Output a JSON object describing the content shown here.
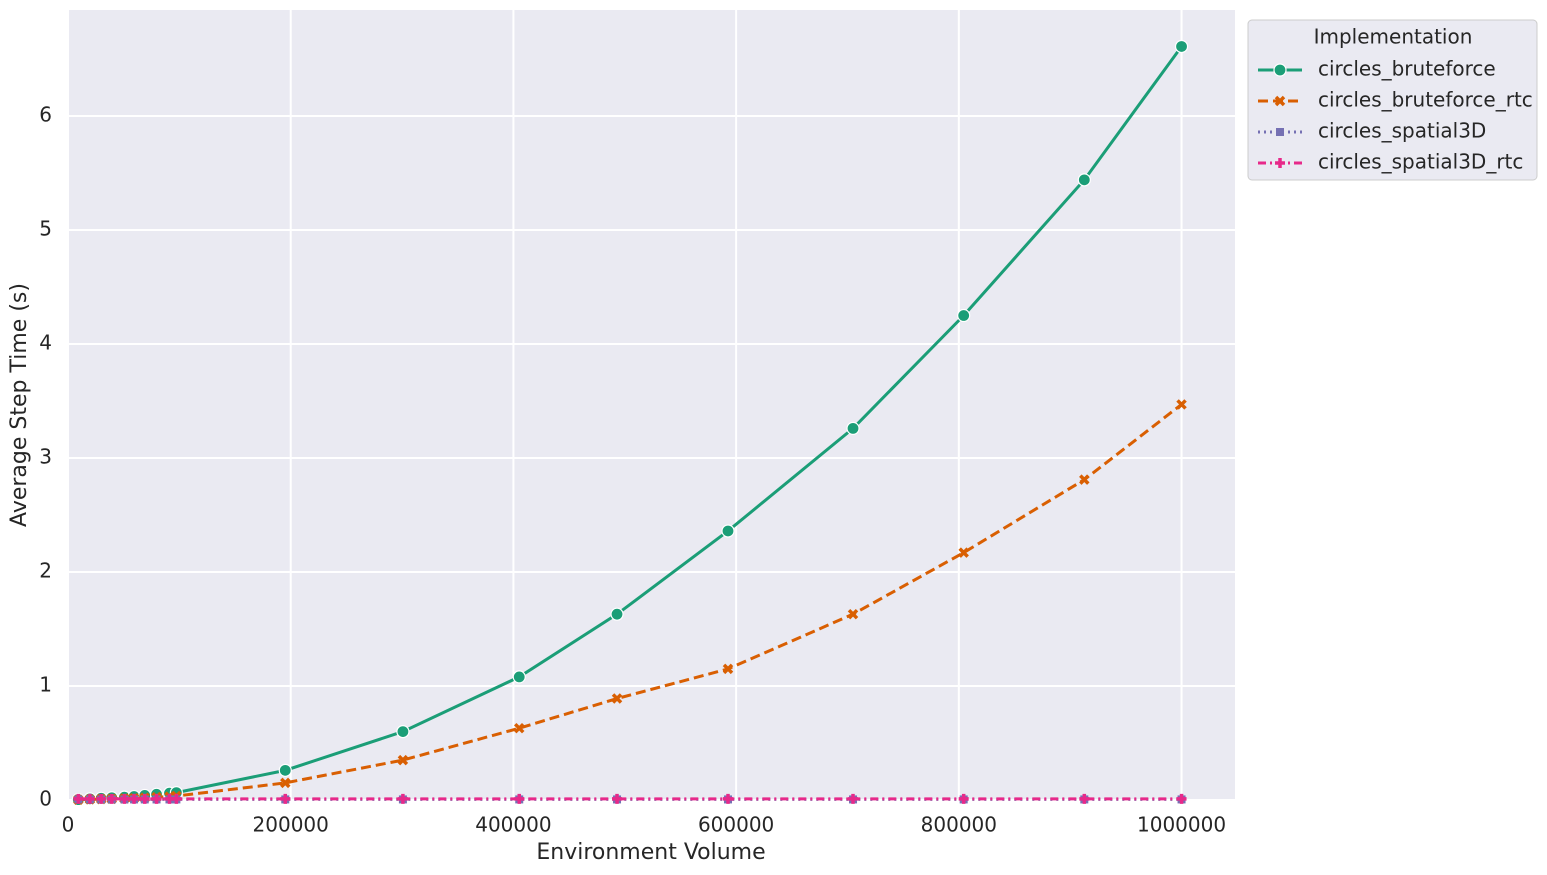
{
  "chart_data": {
    "type": "line",
    "xlabel": "Environment Volume",
    "ylabel": "Average Step Time (s)",
    "legend_title": "Implementation",
    "legend": "upper right outside",
    "grid": true,
    "x": [
      9261,
      19683,
      29791,
      39304,
      50653,
      59319,
      68921,
      79507,
      91125,
      97336,
      195112,
      300763,
      405224,
      493039,
      592704,
      704969,
      804357,
      912673,
      1000000
    ],
    "xlim": [
      0,
      1048000
    ],
    "xticks": [
      0,
      200000,
      400000,
      600000,
      800000,
      1000000
    ],
    "ylim": [
      0,
      6.93
    ],
    "yticks": [
      0,
      1,
      2,
      3,
      4,
      5,
      6
    ],
    "series": [
      {
        "name": "circles_bruteforce",
        "color": "#1b9e77",
        "linestyle": "solid",
        "marker": "circle",
        "values": [
          0.003,
          0.01,
          0.015,
          0.02,
          0.025,
          0.03,
          0.04,
          0.05,
          0.06,
          0.065,
          0.26,
          0.6,
          1.08,
          1.63,
          2.36,
          3.26,
          4.25,
          5.44,
          6.61
        ]
      },
      {
        "name": "circles_bruteforce_rtc",
        "color": "#d95f02",
        "linestyle": "dashed",
        "marker": "x",
        "values": [
          0.002,
          0.005,
          0.008,
          0.01,
          0.013,
          0.016,
          0.02,
          0.025,
          0.03,
          0.035,
          0.15,
          0.35,
          0.63,
          0.89,
          1.15,
          1.63,
          2.17,
          2.81,
          3.47
        ]
      },
      {
        "name": "circles_spatial3D",
        "color": "#7570b3",
        "linestyle": "dotted",
        "marker": "square",
        "values": [
          0.005,
          0.005,
          0.005,
          0.005,
          0.005,
          0.005,
          0.005,
          0.005,
          0.005,
          0.005,
          0.005,
          0.005,
          0.005,
          0.005,
          0.005,
          0.005,
          0.005,
          0.005,
          0.005
        ]
      },
      {
        "name": "circles_spatial3D_rtc",
        "color": "#e7298a",
        "linestyle": "dashdot",
        "marker": "plus",
        "values": [
          0.01,
          0.01,
          0.01,
          0.01,
          0.01,
          0.01,
          0.01,
          0.01,
          0.01,
          0.01,
          0.01,
          0.01,
          0.01,
          0.01,
          0.01,
          0.01,
          0.01,
          0.01,
          0.01
        ]
      }
    ]
  }
}
